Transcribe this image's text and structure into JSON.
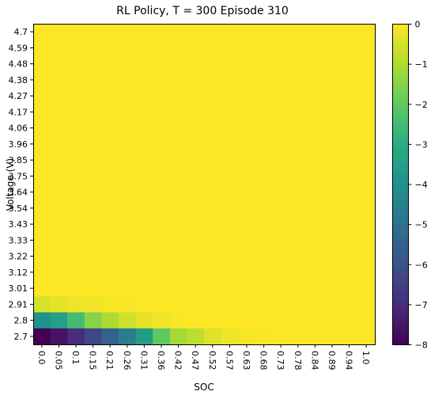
{
  "chart_data": {
    "type": "heatmap",
    "title": "RL Policy, T = 300 Episode 310",
    "xlabel": "SOC",
    "ylabel": "Voltage (V)",
    "x_ticks": [
      "0.0",
      "0.05",
      "0.1",
      "0.15",
      "0.21",
      "0.26",
      "0.31",
      "0.36",
      "0.42",
      "0.47",
      "0.52",
      "0.57",
      "0.63",
      "0.68",
      "0.73",
      "0.78",
      "0.84",
      "0.89",
      "0.94",
      "1.0"
    ],
    "y_ticks": [
      "4.7",
      "4.59",
      "4.48",
      "4.38",
      "4.27",
      "4.17",
      "4.06",
      "3.96",
      "3.85",
      "3.75",
      "3.64",
      "3.54",
      "3.43",
      "3.33",
      "3.22",
      "3.12",
      "3.01",
      "2.91",
      "2.8",
      "2.7"
    ],
    "colorbar": {
      "colormap": "viridis",
      "vmin": -8,
      "vmax": 0,
      "ticks": [
        "0",
        "−1",
        "−2",
        "−3",
        "−4",
        "−5",
        "−6",
        "−7",
        "−8"
      ]
    },
    "default_value": 0,
    "rows": [
      {
        "y": "2.91",
        "values": [
          -0.5,
          -0.3,
          -0.2,
          -0.15,
          -0.1,
          -0.05,
          -0.03,
          0,
          0,
          0,
          0,
          0,
          0,
          0,
          0,
          0,
          0,
          0,
          0,
          0
        ]
      },
      {
        "y": "2.8",
        "values": [
          -4.0,
          -3.5,
          -2.5,
          -1.5,
          -1.0,
          -0.6,
          -0.3,
          -0.15,
          -0.05,
          0,
          0,
          0,
          0,
          0,
          0,
          0,
          0,
          0,
          0,
          0
        ]
      },
      {
        "y": "2.7",
        "values": [
          -8.0,
          -7.6,
          -7.0,
          -6.3,
          -5.5,
          -4.6,
          -3.6,
          -2.0,
          -1.1,
          -0.8,
          -0.4,
          -0.2,
          -0.1,
          -0.05,
          -0.02,
          0,
          0,
          0,
          0,
          0
        ]
      }
    ]
  }
}
